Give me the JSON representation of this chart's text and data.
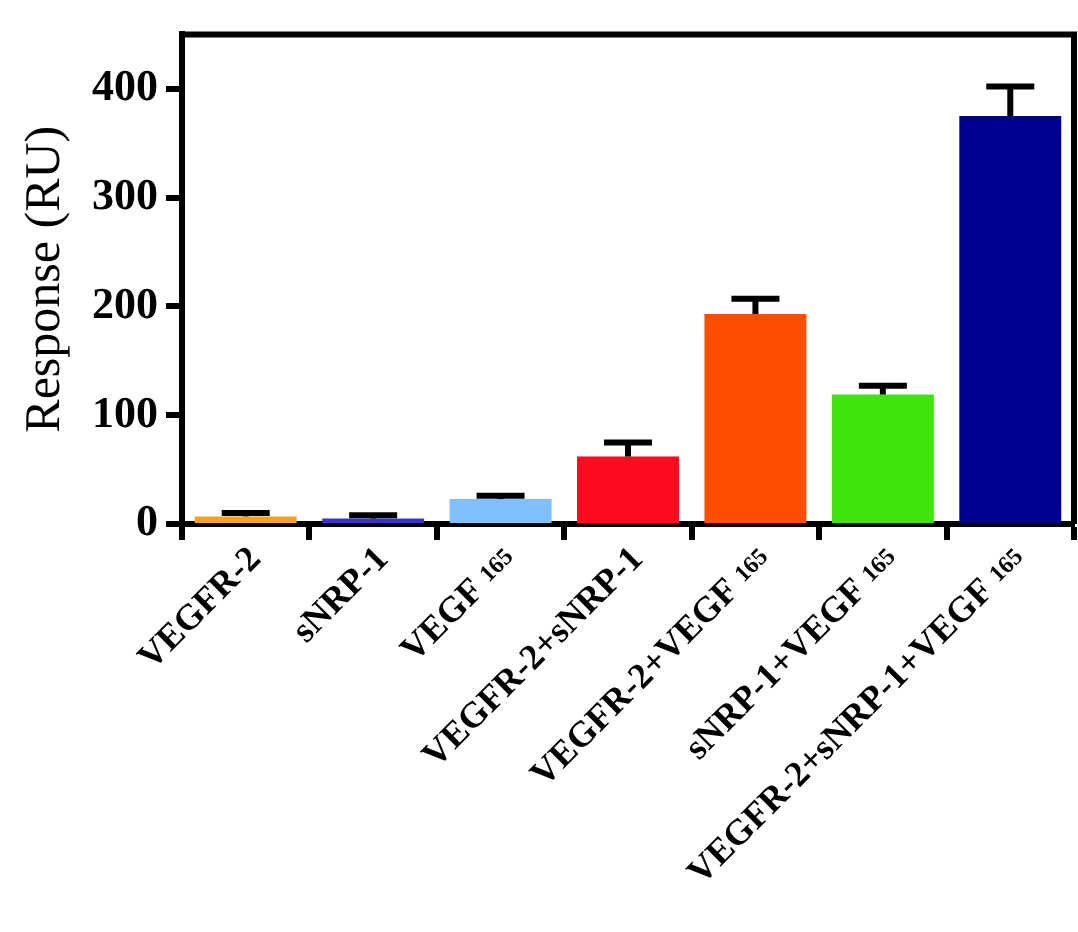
{
  "chart_data": {
    "type": "bar",
    "ylabel": "Response (RU)",
    "categories": [
      "VEGFR-2",
      "sNRP-1",
      "VEGF $_{165}$",
      "VEGFR-2+sNRP-1",
      "VEGFR-2+VEGF $_{165}$",
      "sNRP-1+VEGF $_{165}$",
      "VEGFR-2+sNRP-1+VEGF $_{165}$"
    ],
    "values": [
      7,
      5,
      23,
      62,
      193,
      119,
      375
    ],
    "errors": [
      [
        7,
        10
      ],
      [
        5,
        8
      ],
      [
        23,
        26
      ],
      [
        62,
        75
      ],
      [
        193,
        207
      ],
      [
        119,
        127
      ],
      [
        375,
        402
      ]
    ],
    "colors": [
      "#f7a21b",
      "#3a2fd8",
      "#7fbfff",
      "#ff0a1e",
      "#ff4e00",
      "#3ee40a",
      "#000090"
    ],
    "ylim": [
      0,
      450
    ],
    "yticks": [
      0,
      100,
      200,
      300,
      400
    ],
    "grid": false,
    "legend": false
  }
}
